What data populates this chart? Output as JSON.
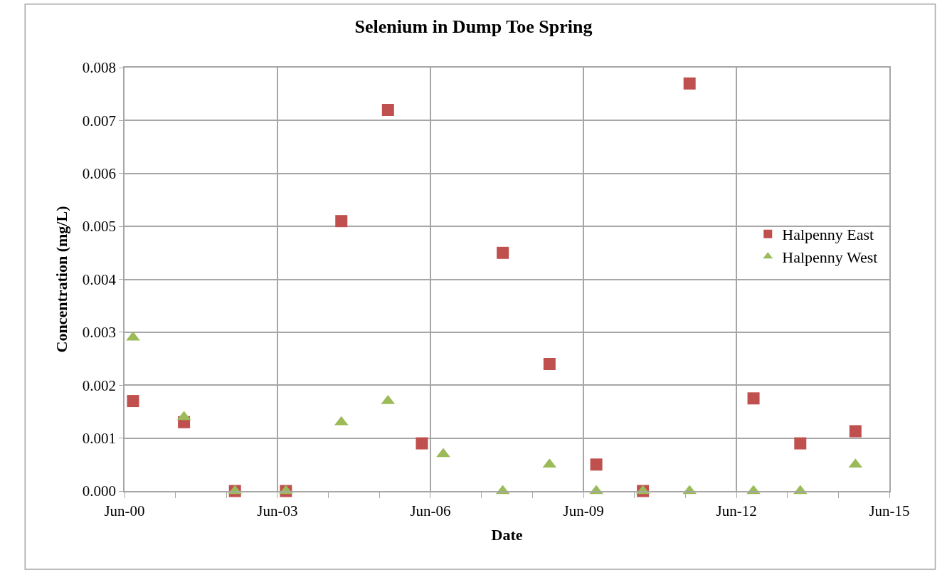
{
  "chart_data": {
    "type": "scatter",
    "title": "Selenium in Dump Toe Spring",
    "xlabel": "Date",
    "ylabel": "Concentration (mg/L)",
    "series": [
      {
        "name": "Halpenny East",
        "color": "#c0504d",
        "marker": "square",
        "x": [
          "2000-08",
          "2001-08",
          "2002-08",
          "2003-08",
          "2004-09",
          "2005-08",
          "2006-04",
          "2007-11",
          "2008-10",
          "2009-09",
          "2010-08",
          "2011-07",
          "2012-10",
          "2013-09",
          "2014-10"
        ],
        "values": [
          0.0017,
          0.0013,
          0,
          0,
          0.0051,
          0.0072,
          0.0009,
          0.0045,
          0.0024,
          0.0005,
          0,
          0.0077,
          0.00175,
          0.0009,
          0.00113
        ]
      },
      {
        "name": "Halpenny West",
        "color": "#9bbb59",
        "marker": "triangle",
        "x": [
          "2000-08",
          "2001-08",
          "2002-08",
          "2003-08",
          "2004-09",
          "2005-08",
          "2006-09",
          "2007-11",
          "2008-10",
          "2009-09",
          "2010-08",
          "2011-07",
          "2012-10",
          "2013-09",
          "2014-10"
        ],
        "values": [
          0.0029,
          0.0014,
          0,
          0,
          0.0013,
          0.0017,
          0.0007,
          0,
          0.0005,
          0,
          0,
          0,
          0,
          0,
          0.0005
        ]
      }
    ],
    "xlim": [
      "2000-06",
      "2015-06"
    ],
    "xticks": [
      {
        "value": "2000-06",
        "label": "Jun-00"
      },
      {
        "value": "2001-06",
        "label": null
      },
      {
        "value": "2002-06",
        "label": null
      },
      {
        "value": "2003-06",
        "label": "Jun-03"
      },
      {
        "value": "2004-06",
        "label": null
      },
      {
        "value": "2005-06",
        "label": null
      },
      {
        "value": "2006-06",
        "label": "Jun-06"
      },
      {
        "value": "2007-06",
        "label": null
      },
      {
        "value": "2008-06",
        "label": null
      },
      {
        "value": "2009-06",
        "label": "Jun-09"
      },
      {
        "value": "2010-06",
        "label": null
      },
      {
        "value": "2011-06",
        "label": null
      },
      {
        "value": "2012-06",
        "label": "Jun-12"
      },
      {
        "value": "2013-06",
        "label": null
      },
      {
        "value": "2014-06",
        "label": null
      },
      {
        "value": "2015-06",
        "label": "Jun-15"
      }
    ],
    "ylim": [
      0,
      0.008
    ],
    "yticks": [
      {
        "value": 0,
        "label": "0.000"
      },
      {
        "value": 0.001,
        "label": "0.001"
      },
      {
        "value": 0.002,
        "label": "0.002"
      },
      {
        "value": 0.003,
        "label": "0.003"
      },
      {
        "value": 0.004,
        "label": "0.004"
      },
      {
        "value": 0.005,
        "label": "0.005"
      },
      {
        "value": 0.006,
        "label": "0.006"
      },
      {
        "value": 0.007,
        "label": "0.007"
      },
      {
        "value": 0.008,
        "label": "0.008"
      }
    ],
    "grid": true,
    "legend": "right"
  }
}
